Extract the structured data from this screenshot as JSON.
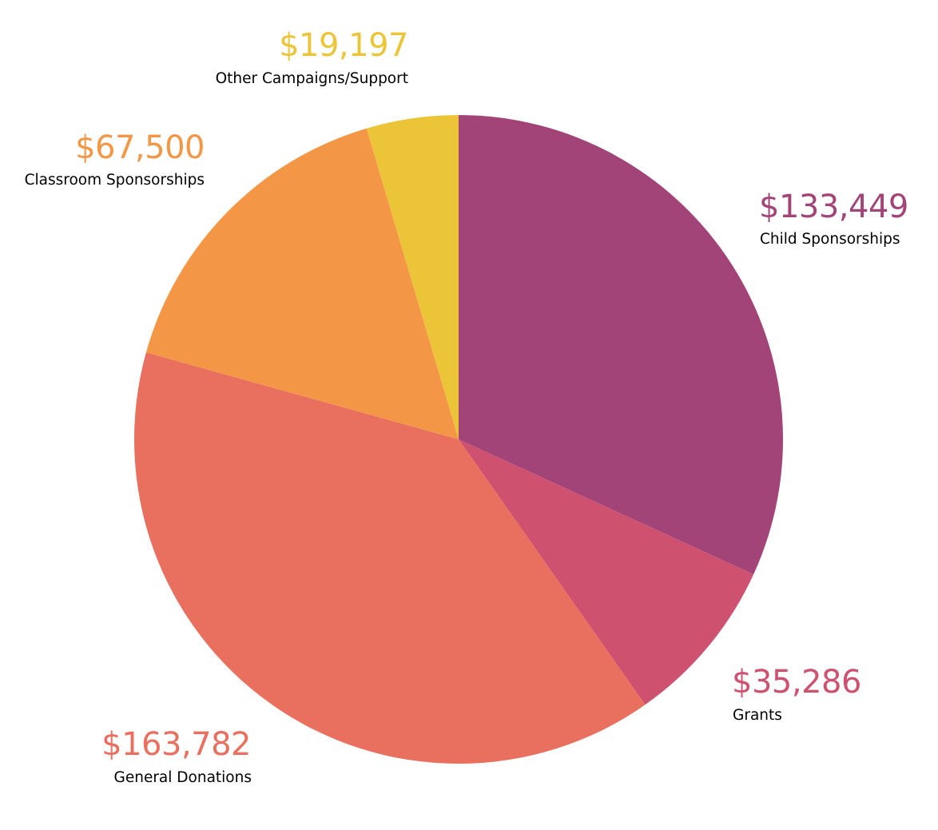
{
  "chart_data": {
    "type": "pie",
    "start_angle_deg": 0,
    "direction": "clockwise",
    "slices": [
      {
        "label": "Child Sponsorships",
        "value": 133449,
        "value_label": "$133,449",
        "color": "#A24477"
      },
      {
        "label": "Grants",
        "value": 35286,
        "value_label": "$35,286",
        "color": "#CE5270"
      },
      {
        "label": "General Donations",
        "value": 163782,
        "value_label": "$163,782",
        "color": "#E96F5E"
      },
      {
        "label": "Classroom Sponsorships",
        "value": 67500,
        "value_label": "$67,500",
        "color": "#F39747"
      },
      {
        "label": "Other Campaigns/Support",
        "value": 19197,
        "value_label": "$19,197",
        "color": "#ECC438"
      }
    ]
  }
}
